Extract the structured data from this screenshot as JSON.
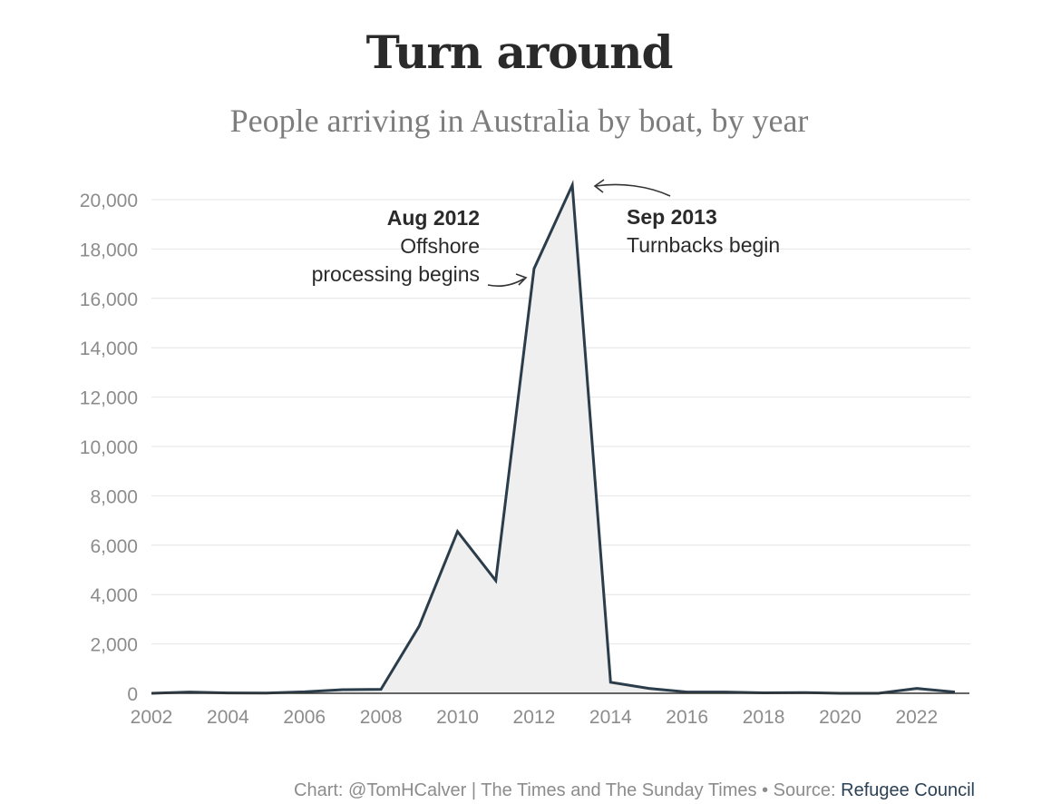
{
  "title": "Turn around",
  "subtitle": "People arriving in Australia by boat, by year",
  "footer": {
    "credit": "Chart: @TomHCalver | The Times and The Sunday Times • Source: ",
    "source": "Refugee Council"
  },
  "colors": {
    "line": "#2b3d4a",
    "area": "#efefef",
    "grid": "#e4e4e4",
    "axis": "#333333"
  },
  "chart_data": {
    "type": "area",
    "title": "Turn around",
    "subtitle": "People arriving in Australia by boat, by year",
    "xlabel": "",
    "ylabel": "",
    "xlim": [
      2002,
      2023
    ],
    "ylim": [
      0,
      20000
    ],
    "grid": true,
    "x": [
      2002,
      2003,
      2004,
      2005,
      2006,
      2007,
      2008,
      2009,
      2010,
      2011,
      2012,
      2013,
      2014,
      2015,
      2016,
      2017,
      2018,
      2019,
      2020,
      2021,
      2022,
      2023
    ],
    "y": [
      1,
      53,
      15,
      11,
      60,
      148,
      161,
      2726,
      6555,
      4565,
      17202,
      20587,
      450,
      200,
      50,
      50,
      20,
      30,
      0,
      0,
      200,
      50
    ],
    "x_ticks": [
      "2002",
      "2004",
      "2006",
      "2008",
      "2010",
      "2012",
      "2014",
      "2016",
      "2018",
      "2020",
      "2022"
    ],
    "x_tick_values": [
      2002,
      2004,
      2006,
      2008,
      2010,
      2012,
      2014,
      2016,
      2018,
      2020,
      2022
    ],
    "y_ticks": [
      "0",
      "2,000",
      "4,000",
      "6,000",
      "8,000",
      "10,000",
      "12,000",
      "14,000",
      "16,000",
      "18,000",
      "20,000"
    ],
    "y_tick_values": [
      0,
      2000,
      4000,
      6000,
      8000,
      10000,
      12000,
      14000,
      16000,
      18000,
      20000
    ],
    "annotations": [
      {
        "heading": "Aug 2012",
        "lines": [
          "Offshore",
          "processing begins"
        ],
        "x": 2012,
        "y": 17202
      },
      {
        "heading": "Sep 2013",
        "lines": [
          "Turnbacks begin"
        ],
        "x": 2013,
        "y": 20587
      }
    ]
  }
}
